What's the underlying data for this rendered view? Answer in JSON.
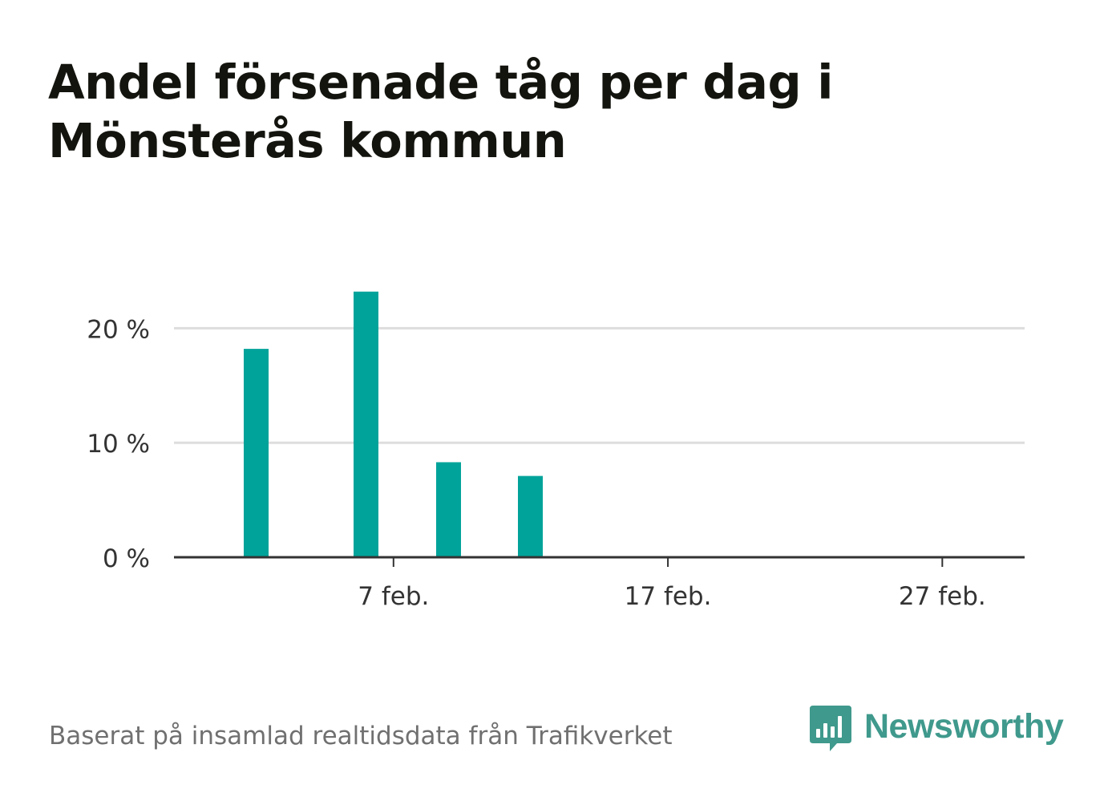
{
  "header": {
    "title": "Andel försenade tåg per dag i Mönsterås kommun"
  },
  "footer": {
    "source": "Baserat på insamlad realtidsdata från Trafikverket"
  },
  "brand": {
    "name": "Newsworthy",
    "icon": "bar-chart-speech-bubble-icon"
  },
  "colors": {
    "bar": "#00a39a",
    "title": "#14140f",
    "grid": "#dddddd",
    "axis": "#333333",
    "brand": "#3f998c",
    "footer": "#707070"
  },
  "chart_data": {
    "type": "bar",
    "title": "Andel försenade tåg per dag i Mönsterås kommun",
    "xlabel": "",
    "ylabel": "",
    "x_type": "date",
    "x_domain": [
      "2018-01-30",
      "2018-03-02"
    ],
    "x": [
      "2018-02-02",
      "2018-02-06",
      "2018-02-09",
      "2018-02-12"
    ],
    "values": [
      18.2,
      23.2,
      8.3,
      7.1
    ],
    "unit": "%",
    "ylim": [
      0,
      25
    ],
    "y_ticks": [
      0,
      10,
      20
    ],
    "y_tick_labels": [
      "0 %",
      "10 %",
      "20 %"
    ],
    "x_ticks": [
      "2018-02-07",
      "2018-02-17",
      "2018-02-27"
    ],
    "x_tick_labels": [
      "7 feb.",
      "17 feb.",
      "27 feb."
    ],
    "grid": true,
    "legend": "none"
  }
}
